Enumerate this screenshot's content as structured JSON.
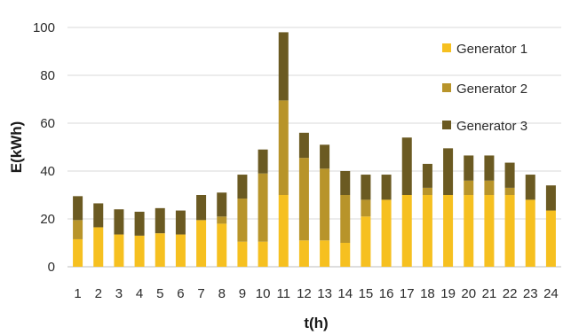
{
  "chart_data": {
    "type": "bar",
    "stacked": true,
    "xlabel": "t(h)",
    "ylabel": "E(kWh)",
    "ylim": [
      0,
      100
    ],
    "yticks": [
      0,
      20,
      40,
      60,
      80,
      100
    ],
    "grid": true,
    "legend_position": "right",
    "categories": [
      "1",
      "2",
      "3",
      "4",
      "5",
      "6",
      "7",
      "8",
      "9",
      "10",
      "11",
      "12",
      "13",
      "14",
      "15",
      "16",
      "17",
      "18",
      "19",
      "20",
      "21",
      "22",
      "23",
      "24"
    ],
    "series": [
      {
        "name": "Generator 1",
        "color": "#f6c020",
        "values": [
          11.5,
          16.5,
          13.5,
          13,
          14,
          13.5,
          19.5,
          18,
          10.5,
          10.5,
          30,
          11,
          11,
          10,
          21,
          28,
          30,
          30,
          30,
          30,
          30,
          30,
          28,
          23.5
        ]
      },
      {
        "name": "Generator 2",
        "color": "#b8942a",
        "values": [
          8,
          0,
          0,
          0,
          0,
          0,
          0,
          3,
          18,
          28.5,
          39.5,
          34.5,
          30,
          20,
          7,
          0,
          0,
          3,
          0,
          6,
          6,
          3,
          0,
          0
        ]
      },
      {
        "name": "Generator 3",
        "color": "#6b5a22",
        "values": [
          10,
          10,
          10.5,
          10,
          10.5,
          10,
          10.5,
          10,
          10,
          10,
          28.5,
          10.5,
          10,
          10,
          10.5,
          10.5,
          24,
          10,
          19.5,
          10.5,
          10.5,
          10.5,
          10.5,
          10.5
        ]
      }
    ]
  }
}
